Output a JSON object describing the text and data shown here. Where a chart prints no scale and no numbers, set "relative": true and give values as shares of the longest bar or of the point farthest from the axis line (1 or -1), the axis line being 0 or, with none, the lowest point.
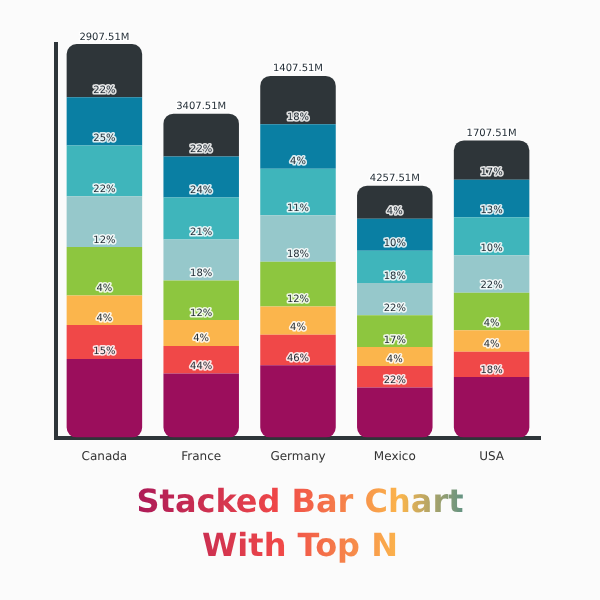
{
  "chart_data": {
    "type": "bar",
    "stacked": true,
    "relative": true,
    "title": "Stacked Bar Chart With Top N",
    "categories": [
      "Canada",
      "France",
      "Germany",
      "Mexico",
      "USA"
    ],
    "series": [
      {
        "color": "#9b0e5c",
        "values": [
          0.2,
          0.163,
          0.184,
          0.127,
          0.154
        ]
      },
      {
        "color": "#f04848",
        "values": [
          0.086,
          0.07,
          0.077,
          0.055,
          0.064
        ]
      },
      {
        "color": "#fbb54c",
        "values": [
          0.075,
          0.066,
          0.072,
          0.048,
          0.055
        ]
      },
      {
        "color": "#8dc63f",
        "values": [
          0.123,
          0.1,
          0.114,
          0.081,
          0.095
        ]
      },
      {
        "color": "#96c8cb",
        "values": [
          0.129,
          0.104,
          0.118,
          0.082,
          0.095
        ]
      },
      {
        "color": "#3fb5bb",
        "values": [
          0.129,
          0.107,
          0.118,
          0.082,
          0.097
        ]
      },
      {
        "color": "#0a7fa3",
        "values": [
          0.123,
          0.104,
          0.113,
          0.081,
          0.095
        ]
      },
      {
        "color": "#2e3539",
        "values": [
          0.135,
          0.109,
          0.123,
          0.084,
          0.1
        ]
      }
    ],
    "annotations": [
      {
        "text": "2907.51M",
        "x": "Canada",
        "y": 1.0
      },
      {
        "text": "3407.51M",
        "x": "France",
        "y": 0.823
      },
      {
        "text": "1407.51M",
        "x": "Germany",
        "y": 0.919
      },
      {
        "text": "4257.51M",
        "x": "Mexico",
        "y": 0.64
      },
      {
        "text": "1707.51M",
        "x": "USA",
        "y": 0.755
      },
      {
        "text": "15%",
        "x": "Canada",
        "y": 0.2
      },
      {
        "text": "4%",
        "x": "Canada",
        "y": 0.286
      },
      {
        "text": "4%",
        "x": "Canada",
        "y": 0.361
      },
      {
        "text": "12%",
        "x": "Canada",
        "y": 0.484
      },
      {
        "text": "22%",
        "x": "Canada",
        "y": 0.613
      },
      {
        "text": "25%",
        "x": "Canada",
        "y": 0.742
      },
      {
        "text": "22%",
        "x": "Canada",
        "y": 0.865
      },
      {
        "text": "44%",
        "x": "France",
        "y": 0.163
      },
      {
        "text": "4%",
        "x": "France",
        "y": 0.233
      },
      {
        "text": "12%",
        "x": "France",
        "y": 0.299
      },
      {
        "text": "18%",
        "x": "France",
        "y": 0.399
      },
      {
        "text": "21%",
        "x": "France",
        "y": 0.503
      },
      {
        "text": "24%",
        "x": "France",
        "y": 0.61
      },
      {
        "text": "22%",
        "x": "France",
        "y": 0.714
      },
      {
        "text": "46%",
        "x": "Germany",
        "y": 0.184
      },
      {
        "text": "4%",
        "x": "Germany",
        "y": 0.261
      },
      {
        "text": "12%",
        "x": "Germany",
        "y": 0.333
      },
      {
        "text": "18%",
        "x": "Germany",
        "y": 0.447
      },
      {
        "text": "11%",
        "x": "Germany",
        "y": 0.565
      },
      {
        "text": "4%",
        "x": "Germany",
        "y": 0.683
      },
      {
        "text": "18%",
        "x": "Germany",
        "y": 0.796
      },
      {
        "text": "22%",
        "x": "Mexico",
        "y": 0.127
      },
      {
        "text": "4%",
        "x": "Mexico",
        "y": 0.182
      },
      {
        "text": "17%",
        "x": "Mexico",
        "y": 0.23
      },
      {
        "text": "22%",
        "x": "Mexico",
        "y": 0.311
      },
      {
        "text": "18%",
        "x": "Mexico",
        "y": 0.393
      },
      {
        "text": "10%",
        "x": "Mexico",
        "y": 0.475
      },
      {
        "text": "4%",
        "x": "Mexico",
        "y": 0.556
      },
      {
        "text": "18%",
        "x": "USA",
        "y": 0.154
      },
      {
        "text": "4%",
        "x": "USA",
        "y": 0.218
      },
      {
        "text": "4%",
        "x": "USA",
        "y": 0.273
      },
      {
        "text": "22%",
        "x": "USA",
        "y": 0.368
      },
      {
        "text": "10%",
        "x": "USA",
        "y": 0.463
      },
      {
        "text": "13%",
        "x": "USA",
        "y": 0.56
      },
      {
        "text": "17%",
        "x": "USA",
        "y": 0.655
      }
    ],
    "grid": false,
    "legend": false
  }
}
